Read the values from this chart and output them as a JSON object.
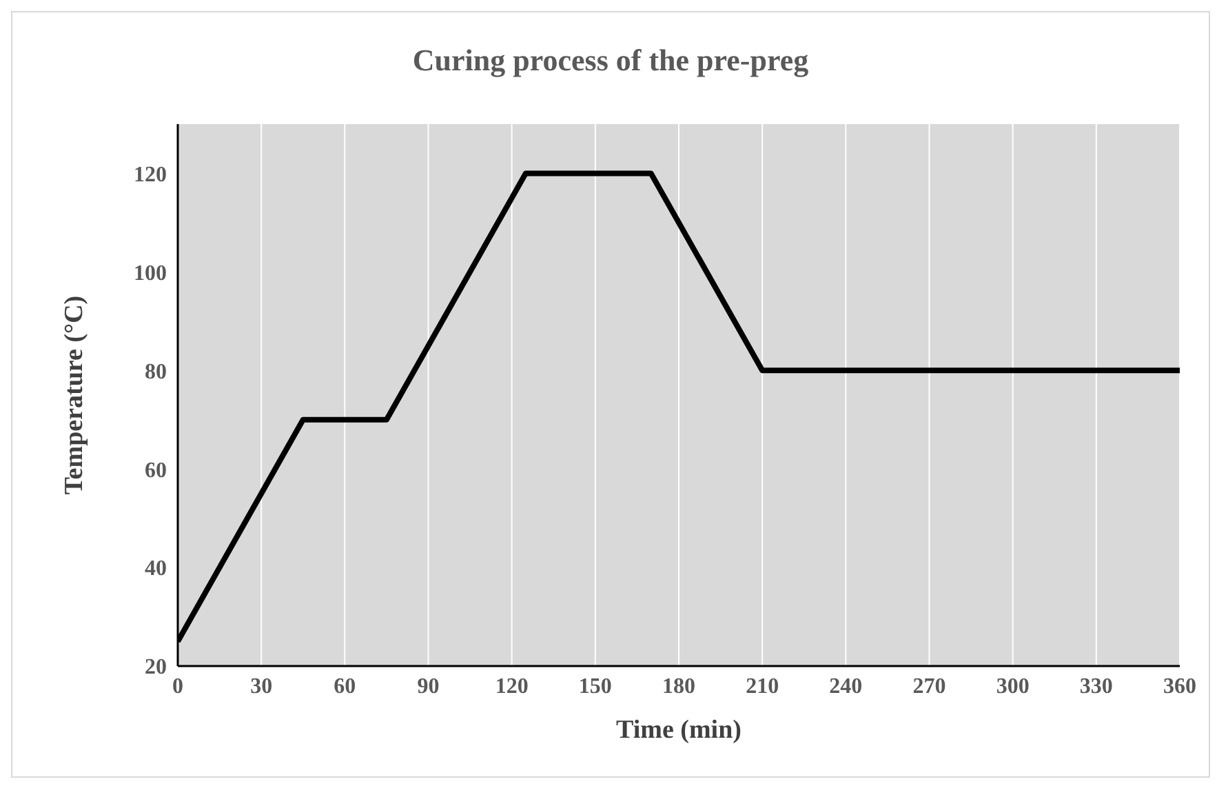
{
  "chart_data": {
    "type": "line",
    "title": "Curing process of the pre-preg",
    "xlabel": "Time (min)",
    "ylabel": "Temperature (°C)",
    "x": [
      0,
      45,
      75,
      125,
      170,
      210,
      360
    ],
    "series": [
      {
        "color": "#000000",
        "values": [
          25,
          70,
          70,
          120,
          120,
          80,
          80
        ]
      }
    ],
    "xlim": [
      0,
      360
    ],
    "xticks": [
      0,
      30,
      60,
      90,
      120,
      150,
      180,
      210,
      240,
      270,
      300,
      330,
      360
    ],
    "ylim": [
      20,
      130
    ],
    "yticks": [
      20,
      40,
      60,
      80,
      100,
      120
    ],
    "grid": "x",
    "legend": false,
    "marker": "none",
    "line_style": "solid"
  }
}
